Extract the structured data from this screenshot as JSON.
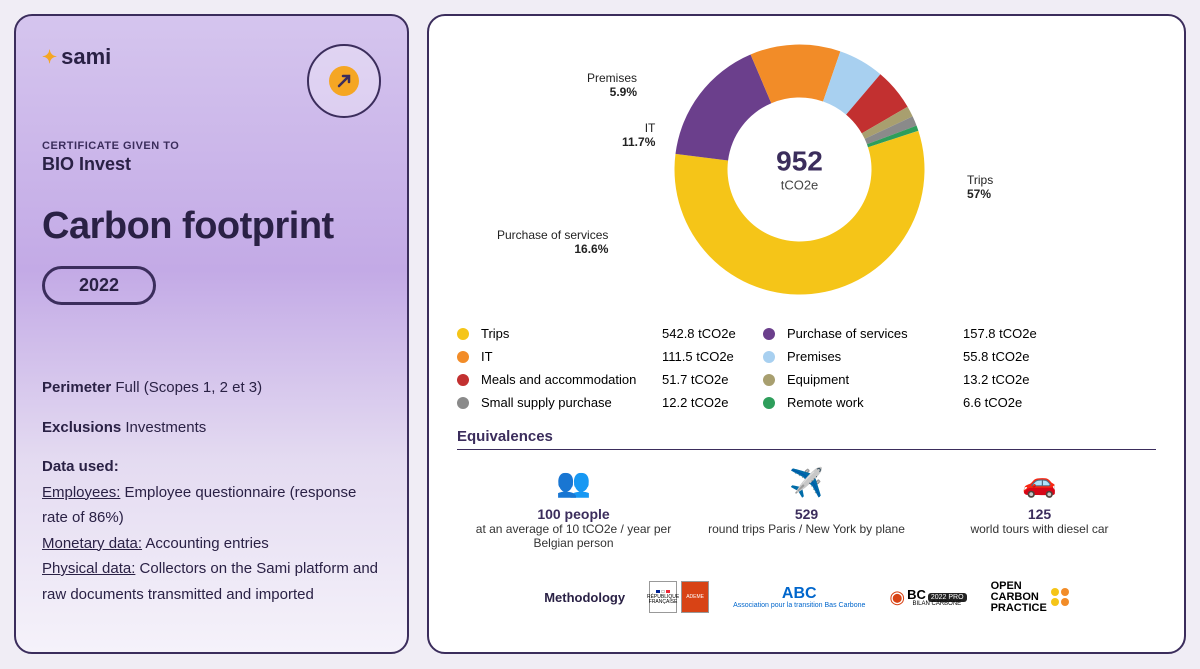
{
  "card": {
    "logo_text": "sami",
    "cert_label": "CERTIFICATE GIVEN TO",
    "recipient": "BIO Invest",
    "title": "Carbon footprint",
    "year": "2022",
    "perimeter_label": "Perimeter",
    "perimeter_value": "Full (Scopes 1, 2 et 3)",
    "exclusions_label": "Exclusions",
    "exclusions_value": "Investments",
    "data_used_label": "Data used:",
    "employees_label": "Employees:",
    "employees_text": " Employee questionnaire (response rate of 86%)",
    "monetary_label": "Monetary data:",
    "monetary_text": " Accounting entries",
    "physical_label": "Physical data:",
    "physical_text": " Collectors on the Sami platform and raw documents transmitted and imported"
  },
  "chart": {
    "total_value": "952",
    "total_unit": "tCO2e",
    "colors": {
      "trips": "#f5c518",
      "services": "#6b3f8c",
      "it": "#f28c28",
      "premises": "#a8d0f0",
      "meals": "#c23030",
      "equipment": "#a89f6f",
      "supply": "#8a8a8a",
      "remote": "#2e9e5b"
    },
    "segments": [
      {
        "key": "trips",
        "label": "Trips",
        "pct": "57%",
        "value": "542.8 tCO2e",
        "angle": 205.2
      },
      {
        "key": "services",
        "label": "Purchase of services",
        "pct": "16.6%",
        "value": "157.8 tCO2e",
        "angle": 59.76
      },
      {
        "key": "it",
        "label": "IT",
        "pct": "11.7%",
        "value": "111.5 tCO2e",
        "angle": 42.12
      },
      {
        "key": "premises",
        "label": "Premises",
        "pct": "5.9%",
        "value": "55.8 tCO2e",
        "angle": 21.24
      },
      {
        "key": "meals",
        "label": "Meals and accommodation",
        "pct": "",
        "value": "51.7 tCO2e",
        "angle": 19.55
      },
      {
        "key": "equipment",
        "label": "Equipment",
        "pct": "",
        "value": "13.2 tCO2e",
        "angle": 4.99
      },
      {
        "key": "supply",
        "label": "Small supply purchase",
        "pct": "",
        "value": "12.2 tCO2e",
        "angle": 4.61
      },
      {
        "key": "remote",
        "label": "Remote work",
        "pct": "",
        "value": "6.6 tCO2e",
        "angle": 2.5
      }
    ],
    "callouts": {
      "trips": "Trips\n57%",
      "services": "Purchase of services\n16.6%",
      "it": "IT\n11.7%",
      "premises": "Premises\n5.9%"
    }
  },
  "legend_order_left": [
    "trips",
    "it",
    "meals",
    "supply"
  ],
  "legend_order_right": [
    "services",
    "premises",
    "equipment",
    "remote"
  ],
  "equivalences": {
    "title": "Equivalences",
    "items": [
      {
        "num": "100 people",
        "desc": "at an average of 10 tCO2e / year per Belgian person",
        "icon": "👥"
      },
      {
        "num": "529",
        "desc": "round trips Paris / New York by plane",
        "icon": "✈️"
      },
      {
        "num": "125",
        "desc": "world tours with diesel car",
        "icon": "🚗"
      }
    ]
  },
  "methodology": {
    "label": "Methodology",
    "rf": "RÉPUBLIQUE FRANÇAISE",
    "ademe": "ADEME",
    "abc": "ABC",
    "abc_sub": "Association pour la transition Bas Carbone",
    "bc": "BC",
    "bc_sub": "BILAN CARBONE",
    "ocp": "OPEN CARBON PRACTICE"
  }
}
